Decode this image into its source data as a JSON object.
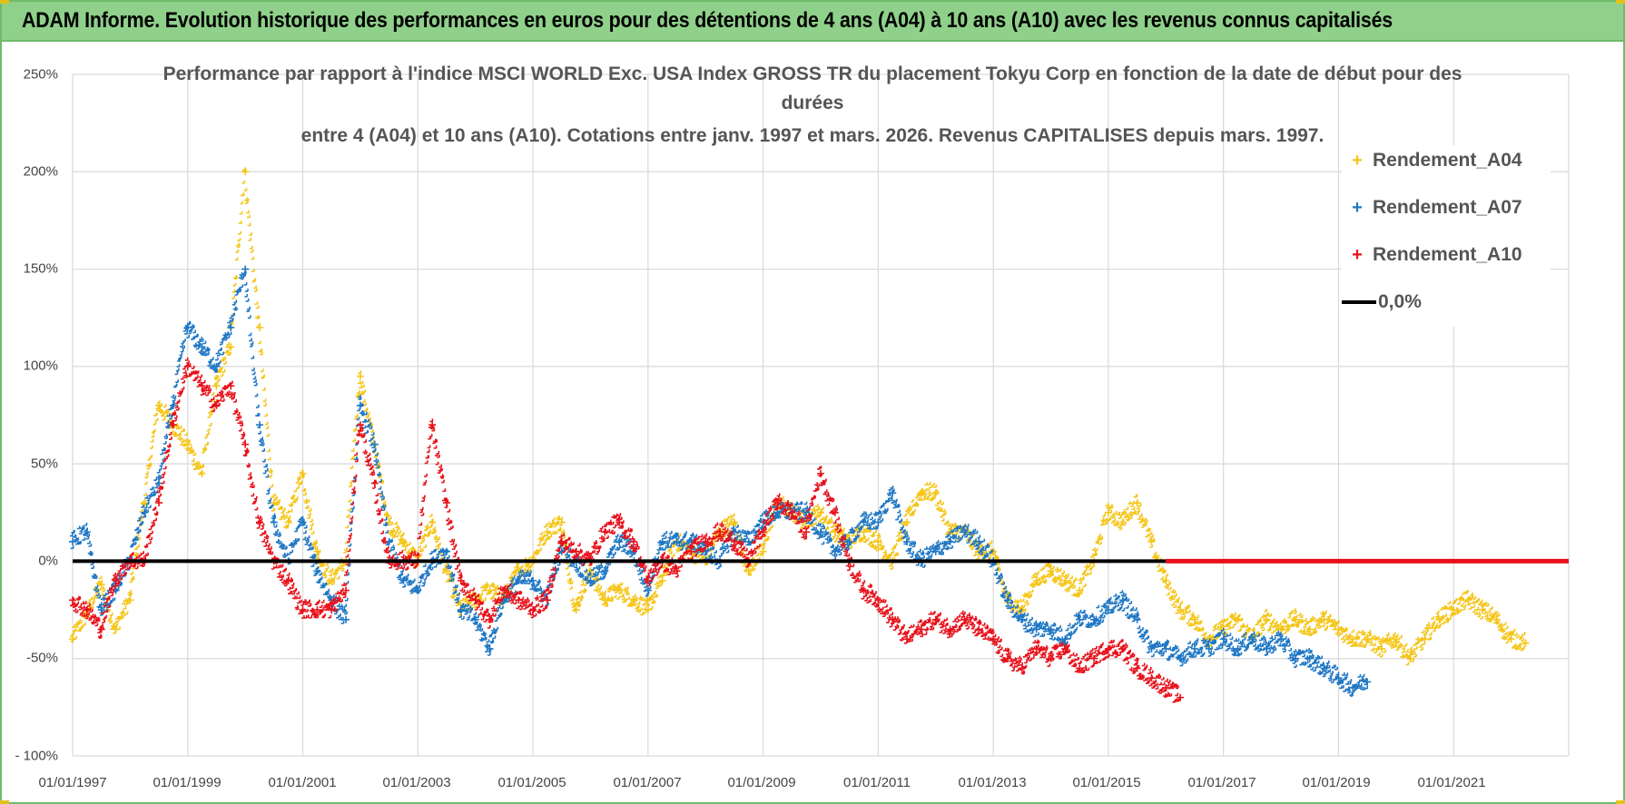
{
  "header": {
    "title": "ADAM Informe. Evolution historique des performances en euros pour des détentions de 4 ans (A04) à 10 ans (A10) avec les revenus connus capitalisés"
  },
  "colors": {
    "header_bg": "#8fd08a",
    "series_a04": "#f5c518",
    "series_a07": "#1f77c4",
    "series_a10": "#e8101a",
    "zero_line": "#000000"
  },
  "chart_data": {
    "type": "scatter",
    "title_lines": [
      "Performance par rapport à l'indice MSCI WORLD Exc. USA Index GROSS TR  du placement Tokyu Corp en fonction de la date de début pour des",
      "durées",
      "entre 4 (A04) et 10 ans (A10).  Cotations entre janv. 1997 et mars. 2026.  Revenus CAPITALISES depuis mars. 1997."
    ],
    "xlabel": "",
    "ylabel": "",
    "xlim": [
      1997.0,
      2023.0
    ],
    "ylim": [
      -100,
      250
    ],
    "yticks": [
      -100,
      -50,
      0,
      50,
      100,
      150,
      200,
      250
    ],
    "ytick_labels": [
      "- 100%",
      "-50%",
      "0%",
      "50%",
      "100%",
      "150%",
      "200%",
      "250%"
    ],
    "xticks": [
      1997,
      1999,
      2001,
      2003,
      2005,
      2007,
      2009,
      2011,
      2013,
      2015,
      2017,
      2019,
      2021
    ],
    "xtick_labels": [
      "01/01/1997",
      "01/01/1999",
      "01/01/2001",
      "01/01/2003",
      "01/01/2005",
      "01/01/2007",
      "01/01/2009",
      "01/01/2011",
      "01/01/2013",
      "01/01/2015",
      "01/01/2017",
      "01/01/2019",
      "01/01/2021"
    ],
    "grid": true,
    "legend_position": "top-right",
    "series": [
      {
        "name": "Rendement_A04",
        "marker": "+",
        "color": "#f5c518",
        "x": [
          1997.0,
          1997.25,
          1997.5,
          1997.75,
          1998.0,
          1998.25,
          1998.5,
          1998.75,
          1999.0,
          1999.25,
          1999.5,
          1999.75,
          2000.0,
          2000.25,
          2000.5,
          2000.75,
          2001.0,
          2001.25,
          2001.5,
          2001.75,
          2002.0,
          2002.25,
          2002.5,
          2002.75,
          2003.0,
          2003.25,
          2003.5,
          2003.75,
          2004.0,
          2004.25,
          2004.5,
          2004.75,
          2005.0,
          2005.25,
          2005.5,
          2005.75,
          2006.0,
          2006.25,
          2006.5,
          2006.75,
          2007.0,
          2007.25,
          2007.5,
          2007.75,
          2008.0,
          2008.25,
          2008.5,
          2008.75,
          2009.0,
          2009.25,
          2009.5,
          2009.75,
          2010.0,
          2010.25,
          2010.5,
          2010.75,
          2011.0,
          2011.25,
          2011.5,
          2011.75,
          2012.0,
          2012.25,
          2012.5,
          2012.75,
          2013.0,
          2013.25,
          2013.5,
          2013.75,
          2014.0,
          2014.25,
          2014.5,
          2014.75,
          2015.0,
          2015.25,
          2015.5,
          2015.75,
          2016.0,
          2016.25,
          2016.5,
          2016.75,
          2017.0,
          2017.25,
          2017.5,
          2017.75,
          2018.0,
          2018.25,
          2018.5,
          2018.75,
          2019.0,
          2019.25,
          2019.5,
          2019.75,
          2020.0,
          2020.25,
          2020.5,
          2020.75,
          2021.0,
          2021.25,
          2021.5,
          2021.75,
          2022.0,
          2022.25
        ],
        "y": [
          -40,
          -28,
          -12,
          -35,
          -20,
          30,
          80,
          70,
          60,
          45,
          90,
          110,
          200,
          120,
          30,
          20,
          45,
          5,
          -10,
          0,
          95,
          60,
          20,
          10,
          0,
          20,
          -5,
          -25,
          -20,
          -15,
          -20,
          -5,
          0,
          15,
          20,
          -25,
          -5,
          -20,
          -15,
          -20,
          -25,
          -10,
          10,
          5,
          0,
          15,
          20,
          -5,
          5,
          30,
          25,
          20,
          25,
          15,
          10,
          15,
          10,
          0,
          20,
          35,
          35,
          15,
          15,
          5,
          5,
          -20,
          -25,
          -10,
          -5,
          -10,
          -15,
          0,
          25,
          20,
          30,
          10,
          -10,
          -25,
          -30,
          -40,
          -35,
          -30,
          -40,
          -30,
          -35,
          -30,
          -35,
          -30,
          -35,
          -40,
          -40,
          -45,
          -40,
          -50,
          -40,
          -30,
          -25,
          -20,
          -25,
          -30,
          -40,
          -42
        ]
      },
      {
        "name": "Rendement_A07",
        "marker": "+",
        "color": "#1f77c4",
        "x": [
          1997.0,
          1997.25,
          1997.5,
          1997.75,
          1998.0,
          1998.25,
          1998.5,
          1998.75,
          1999.0,
          1999.25,
          1999.5,
          1999.75,
          2000.0,
          2000.25,
          2000.5,
          2000.75,
          2001.0,
          2001.25,
          2001.5,
          2001.75,
          2002.0,
          2002.25,
          2002.5,
          2002.75,
          2003.0,
          2003.25,
          2003.5,
          2003.75,
          2004.0,
          2004.25,
          2004.5,
          2004.75,
          2005.0,
          2005.25,
          2005.5,
          2005.75,
          2006.0,
          2006.25,
          2006.5,
          2006.75,
          2007.0,
          2007.25,
          2007.5,
          2007.75,
          2008.0,
          2008.25,
          2008.5,
          2008.75,
          2009.0,
          2009.25,
          2009.5,
          2009.75,
          2010.0,
          2010.25,
          2010.5,
          2010.75,
          2011.0,
          2011.25,
          2011.5,
          2011.75,
          2012.0,
          2012.25,
          2012.5,
          2012.75,
          2013.0,
          2013.25,
          2013.5,
          2013.75,
          2014.0,
          2014.25,
          2014.5,
          2014.75,
          2015.0,
          2015.25,
          2015.5,
          2015.75,
          2016.0,
          2016.25,
          2016.5,
          2016.75,
          2017.0,
          2017.25,
          2017.5,
          2017.75,
          2018.0,
          2018.25,
          2018.5,
          2018.75,
          2019.0,
          2019.25,
          2019.5
        ],
        "y": [
          10,
          15,
          -25,
          -15,
          0,
          25,
          40,
          80,
          120,
          110,
          100,
          120,
          150,
          70,
          20,
          0,
          20,
          -5,
          -20,
          -30,
          80,
          60,
          10,
          -10,
          -15,
          0,
          5,
          -25,
          -30,
          -45,
          -20,
          -10,
          -10,
          -20,
          5,
          0,
          -10,
          -5,
          10,
          5,
          -15,
          10,
          10,
          10,
          5,
          0,
          15,
          10,
          20,
          25,
          25,
          25,
          15,
          5,
          10,
          20,
          20,
          35,
          10,
          0,
          5,
          10,
          15,
          10,
          0,
          -20,
          -30,
          -35,
          -35,
          -40,
          -30,
          -30,
          -25,
          -20,
          -30,
          -45,
          -45,
          -50,
          -45,
          -45,
          -40,
          -45,
          -40,
          -45,
          -40,
          -50,
          -50,
          -55,
          -60,
          -65,
          -62
        ]
      },
      {
        "name": "Rendement_A10",
        "marker": "+",
        "color": "#e8101a",
        "x": [
          1997.0,
          1997.25,
          1997.5,
          1997.75,
          1998.0,
          1998.25,
          1998.5,
          1998.75,
          1999.0,
          1999.25,
          1999.5,
          1999.75,
          2000.0,
          2000.25,
          2000.5,
          2000.75,
          2001.0,
          2001.25,
          2001.5,
          2001.75,
          2002.0,
          2002.25,
          2002.5,
          2002.75,
          2003.0,
          2003.25,
          2003.5,
          2003.75,
          2004.0,
          2004.25,
          2004.5,
          2004.75,
          2005.0,
          2005.25,
          2005.5,
          2005.75,
          2006.0,
          2006.25,
          2006.5,
          2006.75,
          2007.0,
          2007.25,
          2007.5,
          2007.75,
          2008.0,
          2008.25,
          2008.5,
          2008.75,
          2009.0,
          2009.25,
          2009.5,
          2009.75,
          2010.0,
          2010.25,
          2010.5,
          2010.75,
          2011.0,
          2011.25,
          2011.5,
          2011.75,
          2012.0,
          2012.25,
          2012.5,
          2012.75,
          2013.0,
          2013.25,
          2013.5,
          2013.75,
          2014.0,
          2014.25,
          2014.5,
          2014.75,
          2015.0,
          2015.25,
          2015.5,
          2015.75,
          2016.0,
          2016.25
        ],
        "y": [
          -20,
          -25,
          -35,
          -10,
          0,
          0,
          30,
          70,
          100,
          90,
          80,
          90,
          60,
          20,
          0,
          -10,
          -25,
          -25,
          -25,
          -15,
          70,
          40,
          0,
          0,
          0,
          70,
          30,
          -10,
          -20,
          -30,
          -15,
          -20,
          -25,
          -20,
          10,
          5,
          0,
          15,
          20,
          10,
          -10,
          0,
          -5,
          5,
          10,
          15,
          10,
          0,
          15,
          30,
          25,
          15,
          45,
          25,
          0,
          -15,
          -20,
          -30,
          -40,
          -35,
          -30,
          -35,
          -30,
          -35,
          -40,
          -50,
          -55,
          -45,
          -50,
          -45,
          -55,
          -50,
          -45,
          -45,
          -55,
          -60,
          -65,
          -70
        ]
      },
      {
        "name": "0,0%",
        "marker": "line",
        "color": "#000000",
        "x": [
          1997.0,
          2016.0
        ],
        "y": [
          0,
          0
        ]
      }
    ],
    "extra_marks": [
      {
        "name": "Rendement_A10 zero band",
        "x": [
          2016.0,
          2023.0
        ],
        "y": [
          0,
          0
        ],
        "color": "#e8101a"
      }
    ]
  }
}
